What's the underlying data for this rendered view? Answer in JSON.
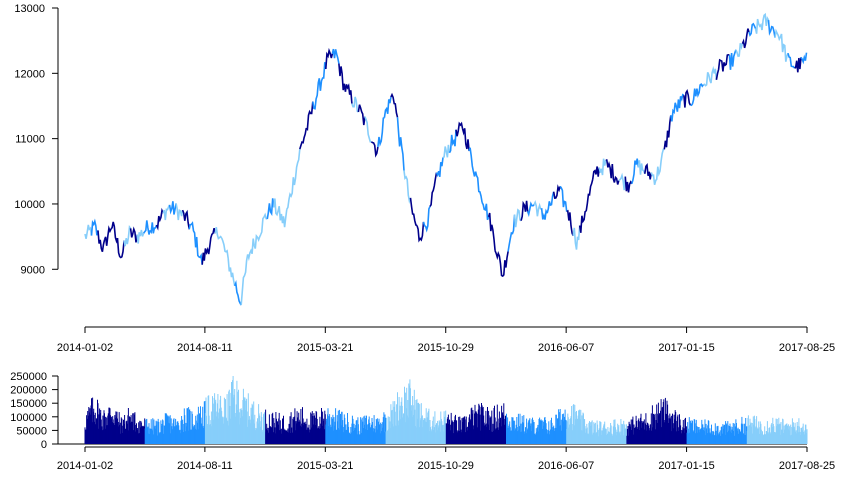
{
  "chart_data": [
    {
      "type": "line",
      "title": "",
      "xlabel": "",
      "ylabel": "",
      "x_ticks": [
        "2014-01-02",
        "2014-08-11",
        "2015-03-21",
        "2015-10-29",
        "2016-06-07",
        "2017-01-15",
        "2017-08-25"
      ],
      "y_ticks": [
        9000,
        10000,
        11000,
        12000,
        13000
      ],
      "ylim": [
        8300,
        13000
      ],
      "colors": [
        "#00008B",
        "#1E90FF",
        "#87CEFA"
      ],
      "series": [
        {
          "x": [
            "2014-01-02",
            "2014-01-20",
            "2014-02-05",
            "2014-02-20",
            "2014-03-10",
            "2014-03-25",
            "2014-04-10",
            "2014-04-28",
            "2014-05-15",
            "2014-06-05",
            "2014-06-20",
            "2014-07-05",
            "2014-07-20",
            "2014-08-05",
            "2014-08-20",
            "2014-09-05",
            "2014-09-20",
            "2014-10-01",
            "2014-10-16",
            "2014-10-30",
            "2014-11-15",
            "2014-12-01",
            "2014-12-15",
            "2015-01-05",
            "2015-01-20",
            "2015-02-05",
            "2015-02-20",
            "2015-03-10",
            "2015-03-25",
            "2015-04-10",
            "2015-04-25",
            "2015-05-10",
            "2015-05-25",
            "2015-06-10",
            "2015-06-25",
            "2015-07-10",
            "2015-07-25",
            "2015-08-05",
            "2015-08-24",
            "2015-09-10",
            "2015-09-28",
            "2015-10-10",
            "2015-10-29",
            "2015-11-15",
            "2015-11-30",
            "2015-12-15",
            "2016-01-05",
            "2016-01-20",
            "2016-02-11",
            "2016-03-01",
            "2016-03-20",
            "2016-04-10",
            "2016-04-25",
            "2016-05-10",
            "2016-05-25",
            "2016-06-10",
            "2016-06-27",
            "2016-07-15",
            "2016-08-01",
            "2016-08-20",
            "2016-09-10",
            "2016-09-30",
            "2016-10-15",
            "2016-11-01",
            "2016-11-20",
            "2016-12-05",
            "2016-12-20",
            "2017-01-10",
            "2017-01-25",
            "2017-02-10",
            "2017-03-01",
            "2017-03-20",
            "2017-04-10",
            "2017-04-25",
            "2017-05-10",
            "2017-05-25",
            "2017-06-10",
            "2017-06-20",
            "2017-07-05",
            "2017-07-20",
            "2017-08-05",
            "2017-08-25"
          ],
          "values": [
            9500,
            9650,
            9300,
            9700,
            9200,
            9550,
            9500,
            9650,
            9700,
            9950,
            9900,
            9800,
            9600,
            9100,
            9400,
            9600,
            9200,
            8900,
            8500,
            9200,
            9500,
            9800,
            10000,
            9700,
            10300,
            10900,
            11300,
            11800,
            12200,
            12300,
            11800,
            11600,
            11400,
            11100,
            10800,
            11400,
            11700,
            11000,
            10000,
            9500,
            9800,
            10300,
            10800,
            11000,
            11200,
            10700,
            10100,
            9700,
            8900,
            9700,
            9900,
            10000,
            9800,
            10000,
            10200,
            9900,
            9400,
            10000,
            10500,
            10600,
            10400,
            10300,
            10600,
            10500,
            10400,
            10800,
            11400,
            11600,
            11600,
            11800,
            11950,
            12100,
            12200,
            12350,
            12600,
            12700,
            12800,
            12700,
            12600,
            12200,
            12100,
            12200
          ]
        }
      ]
    },
    {
      "type": "bar",
      "title": "",
      "xlabel": "",
      "ylabel": "",
      "x_ticks": [
        "2014-01-02",
        "2014-08-11",
        "2015-03-21",
        "2015-10-29",
        "2016-06-07",
        "2017-01-15",
        "2017-08-25"
      ],
      "y_ticks": [
        0,
        50000,
        100000,
        150000,
        200000,
        250000
      ],
      "ylim": [
        0,
        250000
      ],
      "colors": [
        "#00008B",
        "#1E90FF",
        "#87CEFA"
      ],
      "series": [
        {
          "x": [
            "2014-01-02",
            "2014-01-20",
            "2014-02-05",
            "2014-02-20",
            "2014-03-10",
            "2014-03-25",
            "2014-04-10",
            "2014-04-28",
            "2014-05-15",
            "2014-06-05",
            "2014-06-20",
            "2014-07-05",
            "2014-07-20",
            "2014-08-05",
            "2014-08-20",
            "2014-09-05",
            "2014-09-20",
            "2014-10-01",
            "2014-10-16",
            "2014-10-30",
            "2014-11-15",
            "2014-12-01",
            "2014-12-15",
            "2015-01-05",
            "2015-01-20",
            "2015-02-05",
            "2015-02-20",
            "2015-03-10",
            "2015-03-25",
            "2015-04-10",
            "2015-04-25",
            "2015-05-10",
            "2015-05-25",
            "2015-06-10",
            "2015-06-25",
            "2015-07-10",
            "2015-07-25",
            "2015-08-05",
            "2015-08-24",
            "2015-09-10",
            "2015-09-28",
            "2015-10-10",
            "2015-10-29",
            "2015-11-15",
            "2015-11-30",
            "2015-12-15",
            "2016-01-05",
            "2016-01-20",
            "2016-02-11",
            "2016-03-01",
            "2016-03-20",
            "2016-04-10",
            "2016-04-25",
            "2016-05-10",
            "2016-05-25",
            "2016-06-10",
            "2016-06-27",
            "2016-07-15",
            "2016-08-01",
            "2016-08-20",
            "2016-09-10",
            "2016-09-30",
            "2016-10-15",
            "2016-11-01",
            "2016-11-20",
            "2016-12-05",
            "2016-12-20",
            "2017-01-10",
            "2017-01-25",
            "2017-02-10",
            "2017-03-01",
            "2017-03-20",
            "2017-04-10",
            "2017-04-25",
            "2017-05-10",
            "2017-05-25",
            "2017-06-10",
            "2017-06-20",
            "2017-07-05",
            "2017-07-20",
            "2017-08-05",
            "2017-08-25"
          ],
          "values": [
            110000,
            180000,
            120000,
            160000,
            95000,
            130000,
            100000,
            90000,
            85000,
            110000,
            90000,
            130000,
            120000,
            140000,
            170000,
            180000,
            160000,
            240000,
            200000,
            170000,
            140000,
            120000,
            110000,
            100000,
            120000,
            130000,
            110000,
            120000,
            140000,
            120000,
            110000,
            100000,
            90000,
            110000,
            100000,
            120000,
            150000,
            200000,
            220000,
            150000,
            120000,
            110000,
            120000,
            100000,
            90000,
            130000,
            140000,
            120000,
            150000,
            110000,
            100000,
            90000,
            95000,
            90000,
            120000,
            160000,
            130000,
            90000,
            80000,
            80000,
            90000,
            85000,
            100000,
            110000,
            150000,
            160000,
            130000,
            90000,
            90000,
            80000,
            85000,
            75000,
            80000,
            90000,
            100000,
            95000,
            85000,
            100000,
            90000,
            80000,
            95000,
            85000
          ]
        }
      ]
    }
  ]
}
